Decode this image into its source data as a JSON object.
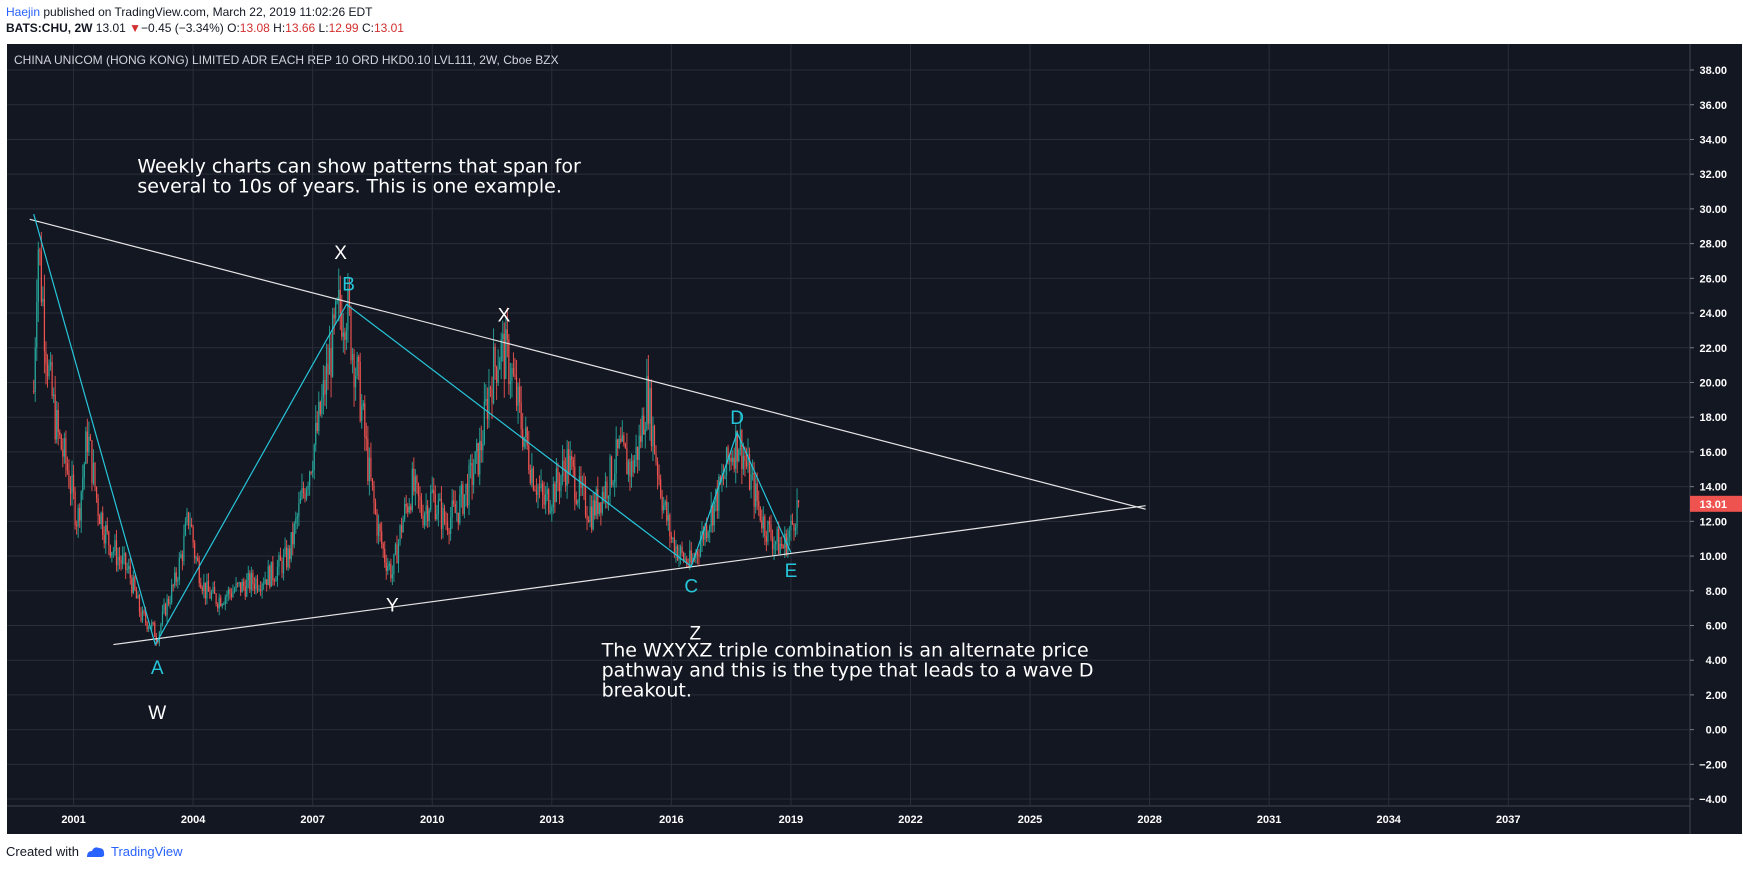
{
  "header": {
    "author": "Haejin",
    "published": "published on TradingView.com, March 22, 2019 11:02:26 EDT",
    "symbol": "BATS:CHU, 2W",
    "last": "13.01",
    "change": "−0.45 (−3.34%)",
    "o_label": "O:",
    "o_value": "13.08",
    "h_label": "H:",
    "h_value": "13.66",
    "l_label": "L:",
    "l_value": "12.99",
    "c_label": "C:",
    "c_value": "13.01"
  },
  "footer": {
    "created_with": "Created with",
    "brand": "TradingView"
  },
  "colors": {
    "background": "#131722",
    "grid": "#2a2e39",
    "up": "#26a69a",
    "down": "#ef5350",
    "wave": "#26c6da",
    "trendline": "#e6e6e6",
    "price_tag": "#ef5350"
  },
  "chart_data": {
    "type": "candlestick",
    "title": "CHINA UNICOM (HONG KONG) LIMITED ADR EACH REP 10 ORD HKD0.10 LVL111, 2W, Cboe BZX",
    "x_ticks": [
      "2001",
      "2004",
      "2007",
      "2010",
      "2013",
      "2016",
      "2019",
      "2022",
      "2025",
      "2028",
      "2031",
      "2034",
      "2037"
    ],
    "y_ticks": [
      "38.00",
      "36.00",
      "34.00",
      "32.00",
      "30.00",
      "28.00",
      "26.00",
      "24.00",
      "22.00",
      "20.00",
      "18.00",
      "16.00",
      "14.00",
      "12.00",
      "10.00",
      "8.00",
      "6.00",
      "4.00",
      "2.00",
      "0.00",
      "−2.00",
      "−4.00"
    ],
    "ylim": [
      -4.4,
      39.5
    ],
    "xlim": [
      1999.33,
      2041.56
    ],
    "last_price": "13.01",
    "price_path": [
      [
        2000.0,
        19.5
      ],
      [
        2000.1,
        28.5
      ],
      [
        2000.25,
        24
      ],
      [
        2000.4,
        20
      ],
      [
        2000.6,
        17
      ],
      [
        2000.85,
        15
      ],
      [
        2001.1,
        12
      ],
      [
        2001.35,
        17
      ],
      [
        2001.6,
        13
      ],
      [
        2001.85,
        11
      ],
      [
        2002.1,
        10
      ],
      [
        2002.4,
        9
      ],
      [
        2002.7,
        6.5
      ],
      [
        2002.95,
        6
      ],
      [
        2003.1,
        5.3
      ],
      [
        2003.3,
        7
      ],
      [
        2003.55,
        8.5
      ],
      [
        2003.75,
        10.5
      ],
      [
        2003.9,
        12.5
      ],
      [
        2004.05,
        10
      ],
      [
        2004.3,
        8
      ],
      [
        2004.6,
        7.5
      ],
      [
        2005.0,
        8
      ],
      [
        2005.5,
        8.5
      ],
      [
        2006.0,
        9
      ],
      [
        2006.4,
        10
      ],
      [
        2006.8,
        14
      ],
      [
        2007.1,
        17
      ],
      [
        2007.4,
        21
      ],
      [
        2007.65,
        24
      ],
      [
        2007.85,
        24.5
      ],
      [
        2008.0,
        22
      ],
      [
        2008.2,
        19
      ],
      [
        2008.4,
        15
      ],
      [
        2008.6,
        12
      ],
      [
        2008.8,
        10
      ],
      [
        2009.0,
        9
      ],
      [
        2009.25,
        12
      ],
      [
        2009.5,
        14
      ],
      [
        2009.75,
        12.5
      ],
      [
        2010.0,
        13.5
      ],
      [
        2010.3,
        12
      ],
      [
        2010.6,
        12.5
      ],
      [
        2010.9,
        14
      ],
      [
        2011.2,
        16
      ],
      [
        2011.45,
        20
      ],
      [
        2011.7,
        22
      ],
      [
        2011.95,
        21
      ],
      [
        2012.2,
        18
      ],
      [
        2012.5,
        15
      ],
      [
        2012.8,
        13
      ],
      [
        2013.1,
        14
      ],
      [
        2013.4,
        15.5
      ],
      [
        2013.7,
        13.5
      ],
      [
        2014.0,
        12.5
      ],
      [
        2014.35,
        14
      ],
      [
        2014.7,
        16
      ],
      [
        2015.0,
        15
      ],
      [
        2015.2,
        16.5
      ],
      [
        2015.4,
        19.5
      ],
      [
        2015.6,
        16
      ],
      [
        2015.8,
        13
      ],
      [
        2016.0,
        11
      ],
      [
        2016.25,
        10
      ],
      [
        2016.5,
        9.5
      ],
      [
        2016.75,
        11
      ],
      [
        2017.0,
        12.5
      ],
      [
        2017.25,
        14
      ],
      [
        2017.5,
        16
      ],
      [
        2017.7,
        16.8
      ],
      [
        2017.9,
        15
      ],
      [
        2018.1,
        13.5
      ],
      [
        2018.3,
        12
      ],
      [
        2018.55,
        11
      ],
      [
        2018.8,
        10.5
      ],
      [
        2019.0,
        11.5
      ],
      [
        2019.1,
        12.5
      ],
      [
        2019.2,
        13
      ]
    ],
    "wave_lines": [
      [
        [
          2000.0,
          29.7
        ],
        [
          2003.05,
          4.9
        ],
        [
          2007.85,
          24.5
        ],
        [
          2016.5,
          9.4
        ],
        [
          2017.65,
          17.1
        ],
        [
          2019.0,
          10.2
        ]
      ]
    ],
    "trendlines": [
      [
        [
          1999.9,
          29.4
        ],
        [
          2027.9,
          12.7
        ]
      ],
      [
        [
          2002.0,
          4.9
        ],
        [
          2027.9,
          12.9
        ]
      ]
    ],
    "wave_labels": [
      {
        "text": "A",
        "x": 2003.1,
        "y": 3.2,
        "color": "wave"
      },
      {
        "text": "B",
        "x": 2007.9,
        "y": 25.3,
        "color": "wave"
      },
      {
        "text": "C",
        "x": 2016.5,
        "y": 7.9,
        "color": "wave"
      },
      {
        "text": "D",
        "x": 2017.65,
        "y": 17.6,
        "color": "wave"
      },
      {
        "text": "E",
        "x": 2019.0,
        "y": 8.8,
        "color": "wave"
      },
      {
        "text": "W",
        "x": 2003.1,
        "y": 0.6,
        "color": "white"
      },
      {
        "text": "X",
        "x": 2007.7,
        "y": 27.1,
        "color": "white"
      },
      {
        "text": "X",
        "x": 2011.8,
        "y": 23.5,
        "color": "white"
      },
      {
        "text": "Y",
        "x": 2009.0,
        "y": 6.8,
        "color": "white"
      },
      {
        "text": "Z",
        "x": 2016.6,
        "y": 5.2,
        "color": "white"
      }
    ],
    "annotations": [
      {
        "lines": [
          "Weekly charts can show patterns that span for",
          "several to 10s of years. This is one example."
        ],
        "x": 2002.6,
        "y": 32.1
      },
      {
        "lines": [
          "The WXYXZ triple combination is an alternate price",
          "pathway and this is the type that leads to a wave D",
          "breakout."
        ],
        "x": 2014.25,
        "y": 4.2
      }
    ]
  }
}
